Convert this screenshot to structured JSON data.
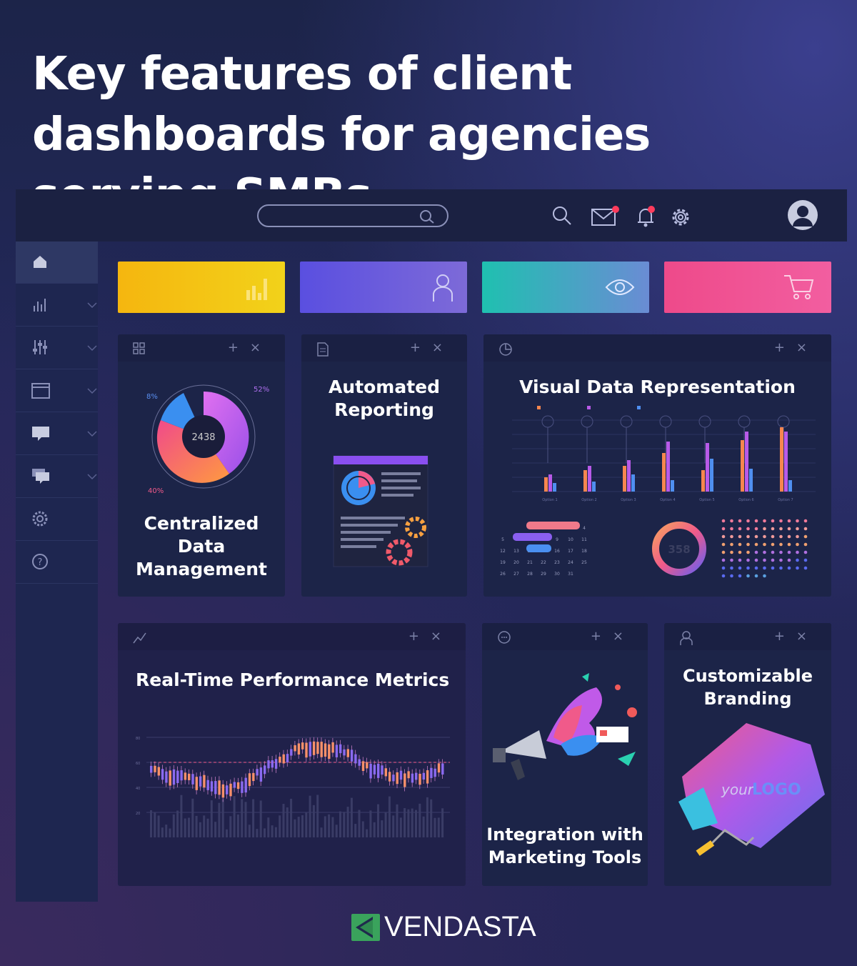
{
  "title": "Key features of client dashboards for agencies serving SMBs",
  "topbar": {
    "icons": [
      "search-icon",
      "mail-icon",
      "bell-icon",
      "gear-icon",
      "avatar-icon"
    ],
    "notification_color": "#ff3b5c"
  },
  "sidebar": {
    "items": [
      "home",
      "bar-chart",
      "sliders",
      "window",
      "chat",
      "chats",
      "settings",
      "help"
    ]
  },
  "stat_cards": [
    {
      "icon": "bar-chart-icon",
      "colors": [
        "#f5b60f",
        "#f2d21a"
      ]
    },
    {
      "icon": "user-icon",
      "colors": [
        "#5b4fe0",
        "#7d6ad8"
      ]
    },
    {
      "icon": "eye-icon",
      "colors": [
        "#1fc0b0",
        "#5a8fd0"
      ]
    },
    {
      "icon": "cart-icon",
      "colors": [
        "#ee4a8a",
        "#f05a9a"
      ]
    }
  ],
  "panels": {
    "centralized": {
      "title_lines": [
        "Centralized",
        "Data",
        "Management"
      ],
      "donut_center": "2438",
      "labels": [
        "8%",
        "52%",
        "40%"
      ]
    },
    "reporting": {
      "title_lines": [
        "Automated",
        "Reporting"
      ]
    },
    "visual": {
      "title": "Visual Data Representation",
      "options": [
        "Option 1",
        "Option 2",
        "Option 3",
        "Option 4",
        "Option 5",
        "Option 6",
        "Option 7"
      ],
      "ring_value": "358",
      "calendar_days": 31
    },
    "realtime": {
      "title": "Real-Time Performance Metrics",
      "y_ticks": [
        "80",
        "60",
        "40",
        "20"
      ]
    },
    "integration": {
      "title_lines": [
        "Integration with",
        "Marketing Tools"
      ]
    },
    "branding": {
      "title_lines": [
        "Customizable",
        "Branding"
      ],
      "logo_text_a": "your",
      "logo_text_b": "LOGO"
    }
  },
  "chart_data": {
    "type": "bar",
    "categories": [
      "Option 1",
      "Option 2",
      "Option 3",
      "Option 4",
      "Option 5",
      "Option 6",
      "Option 7"
    ],
    "series": [
      {
        "values": [
          10,
          15,
          18,
          27,
          15,
          36,
          45
        ],
        "color": "#f7864f"
      },
      {
        "values": [
          12,
          18,
          22,
          35,
          34,
          42,
          42
        ],
        "color": "#b85ae8"
      },
      {
        "values": [
          6,
          7,
          12,
          8,
          23,
          16,
          8
        ],
        "color": "#4f8ff0"
      }
    ]
  },
  "brand": {
    "name": "VENDASTA",
    "color": "#3aa35c"
  }
}
